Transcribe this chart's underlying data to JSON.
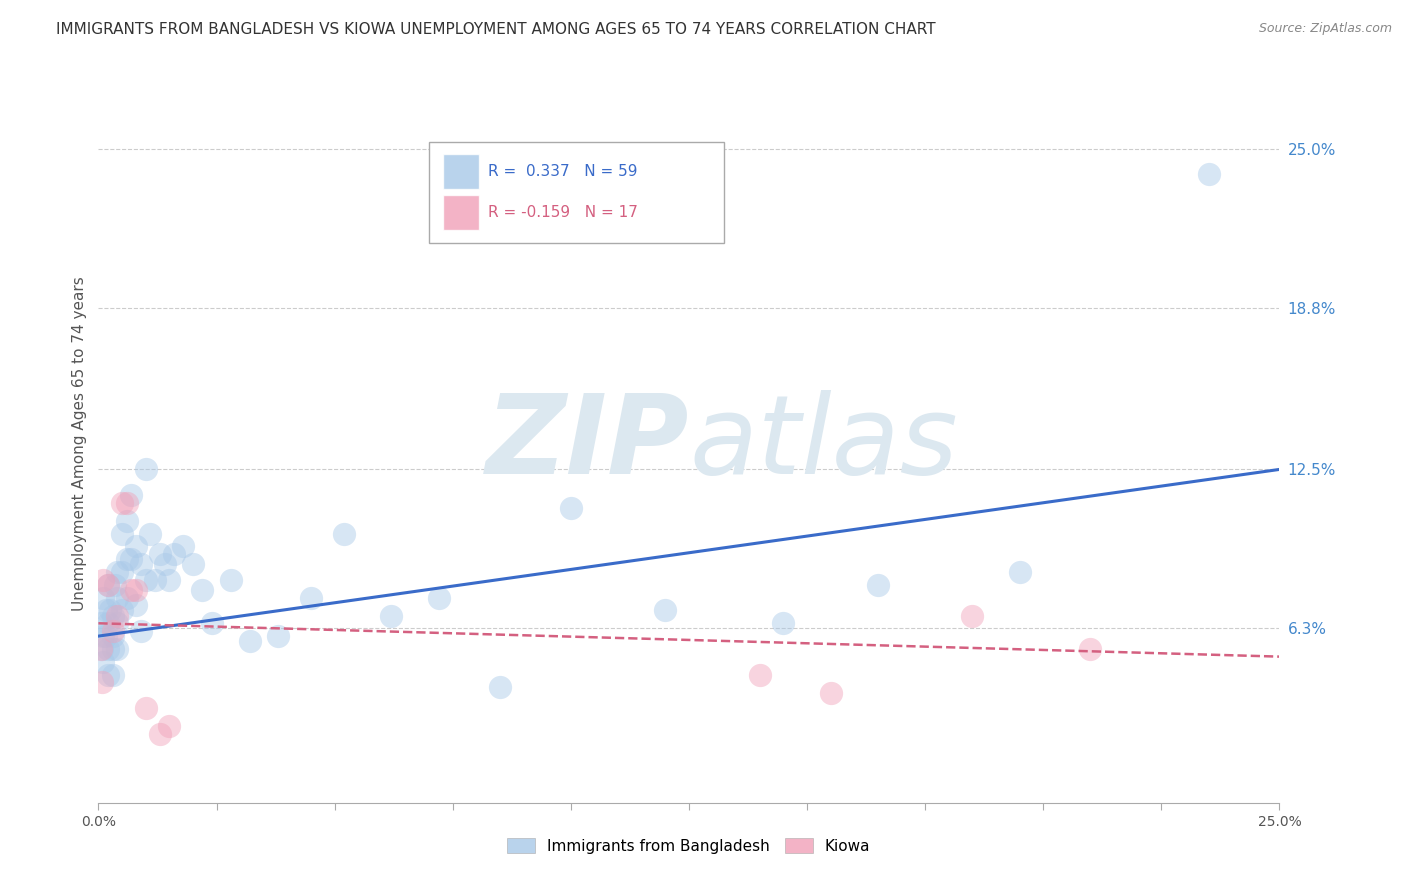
{
  "title": "IMMIGRANTS FROM BANGLADESH VS KIOWA UNEMPLOYMENT AMONG AGES 65 TO 74 YEARS CORRELATION CHART",
  "source": "Source: ZipAtlas.com",
  "ylabel": "Unemployment Among Ages 65 to 74 years",
  "xlim": [
    0,
    0.25
  ],
  "ylim": [
    -0.005,
    0.275
  ],
  "right_yticks": [
    0.063,
    0.125,
    0.188,
    0.25
  ],
  "right_yticklabels": [
    "6.3%",
    "12.5%",
    "18.8%",
    "25.0%"
  ],
  "xticks": [
    0.0,
    0.025,
    0.05,
    0.075,
    0.1,
    0.125,
    0.15,
    0.175,
    0.2,
    0.225,
    0.25
  ],
  "xticklabel_left": "0.0%",
  "xticklabel_right": "25.0%",
  "legend_entries": [
    {
      "label": "Immigrants from Bangladesh",
      "R": "0.337",
      "N": "59",
      "color": "#a8c4e0"
    },
    {
      "label": "Kiowa",
      "R": "-0.159",
      "N": "17",
      "color": "#f4a0b0"
    }
  ],
  "blue_scatter_x": [
    0.0005,
    0.0008,
    0.001,
    0.001,
    0.001,
    0.0015,
    0.0015,
    0.002,
    0.002,
    0.002,
    0.002,
    0.0025,
    0.003,
    0.003,
    0.003,
    0.003,
    0.0035,
    0.004,
    0.004,
    0.004,
    0.004,
    0.005,
    0.005,
    0.005,
    0.006,
    0.006,
    0.006,
    0.007,
    0.007,
    0.008,
    0.008,
    0.009,
    0.009,
    0.01,
    0.01,
    0.011,
    0.012,
    0.013,
    0.014,
    0.015,
    0.016,
    0.018,
    0.02,
    0.022,
    0.024,
    0.028,
    0.032,
    0.038,
    0.045,
    0.052,
    0.062,
    0.072,
    0.085,
    0.1,
    0.12,
    0.145,
    0.165,
    0.195,
    0.235
  ],
  "blue_scatter_y": [
    0.065,
    0.055,
    0.075,
    0.06,
    0.05,
    0.07,
    0.06,
    0.08,
    0.065,
    0.055,
    0.045,
    0.07,
    0.068,
    0.06,
    0.055,
    0.045,
    0.08,
    0.085,
    0.075,
    0.065,
    0.055,
    0.1,
    0.085,
    0.07,
    0.105,
    0.09,
    0.075,
    0.115,
    0.09,
    0.095,
    0.072,
    0.088,
    0.062,
    0.125,
    0.082,
    0.1,
    0.082,
    0.092,
    0.088,
    0.082,
    0.092,
    0.095,
    0.088,
    0.078,
    0.065,
    0.082,
    0.058,
    0.06,
    0.075,
    0.1,
    0.068,
    0.075,
    0.04,
    0.11,
    0.07,
    0.065,
    0.08,
    0.085,
    0.24
  ],
  "pink_scatter_x": [
    0.0005,
    0.0008,
    0.001,
    0.002,
    0.003,
    0.004,
    0.005,
    0.006,
    0.007,
    0.008,
    0.01,
    0.013,
    0.015,
    0.14,
    0.155,
    0.185,
    0.21
  ],
  "pink_scatter_y": [
    0.055,
    0.042,
    0.082,
    0.08,
    0.062,
    0.068,
    0.112,
    0.112,
    0.078,
    0.078,
    0.032,
    0.022,
    0.025,
    0.045,
    0.038,
    0.068,
    0.055
  ],
  "blue_line_x": [
    0.0,
    0.25
  ],
  "blue_line_y": [
    0.06,
    0.125
  ],
  "pink_line_x": [
    0.0,
    0.25
  ],
  "pink_line_y": [
    0.065,
    0.052
  ],
  "scatter_size": 280,
  "scatter_alpha": 0.45,
  "blue_color": "#a8c8e8",
  "pink_color": "#f0a0b8",
  "blue_line_color": "#3a6bc9",
  "pink_line_color": "#d46080",
  "grid_color": "#cccccc",
  "watermark_zip": "ZIP",
  "watermark_atlas": "atlas",
  "watermark_color": "#dce8f0",
  "watermark_fontsize": 80,
  "title_fontsize": 11,
  "source_fontsize": 9
}
